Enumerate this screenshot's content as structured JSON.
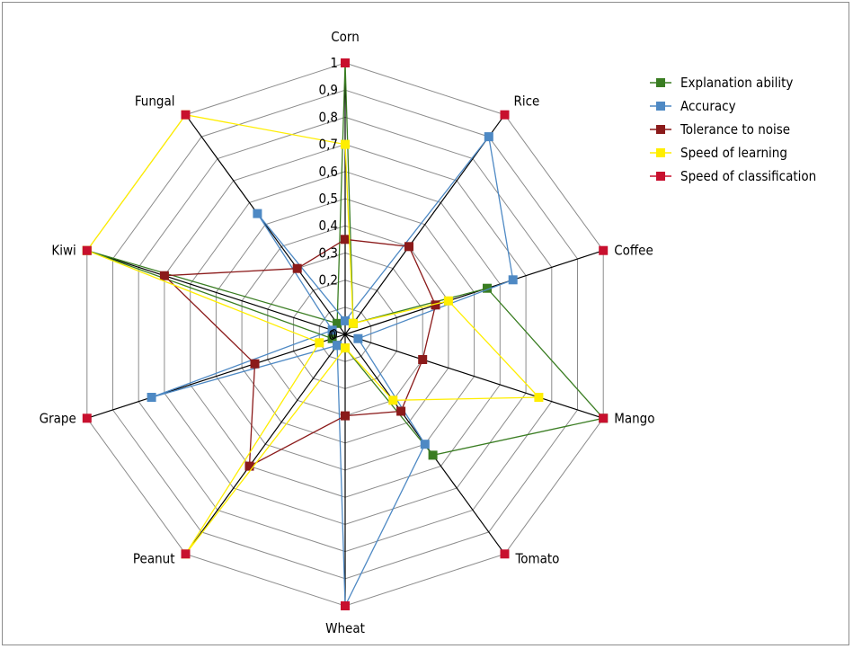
{
  "chart_data": {
    "type": "radar",
    "categories": [
      "Corn",
      "Rice",
      "Coffee",
      "Mango",
      "Tomato",
      "Wheat",
      "Peanut",
      "Grape",
      "Kiwi",
      "Fungal"
    ],
    "rlim": [
      0,
      1
    ],
    "grid": true,
    "legend_position": "top-right",
    "tick_labels": [
      "0",
      "0,2",
      "0,3",
      "0,4",
      "0,5",
      "0,6",
      "0,7",
      "0,8",
      "0,9",
      "1"
    ],
    "tick_values": [
      0,
      0.2,
      0.3,
      0.4,
      0.5,
      0.6,
      0.7,
      0.8,
      0.9,
      1.0
    ],
    "origin_label": "0",
    "series": [
      {
        "name": "Explanation ability",
        "color": "#3a7d22",
        "values": [
          1.0,
          0.05,
          0.55,
          1.0,
          0.55,
          0.05,
          0.05,
          0.05,
          1.0,
          0.05
        ]
      },
      {
        "name": "Accuracy",
        "color": "#4e89c4",
        "values": [
          0.05,
          0.9,
          0.65,
          0.05,
          0.5,
          1.0,
          0.05,
          0.75,
          0.05,
          0.55
        ]
      },
      {
        "name": "Tolerance to noise",
        "color": "#8b1a1a",
        "values": [
          0.35,
          0.4,
          0.35,
          0.3,
          0.35,
          0.3,
          0.6,
          0.35,
          0.7,
          0.3
        ]
      },
      {
        "name": "Speed of learning",
        "color": "#ffee00",
        "values": [
          0.7,
          0.05,
          0.4,
          0.75,
          0.3,
          0.05,
          1.0,
          0.1,
          1.0,
          1.0
        ]
      },
      {
        "name": "Speed of classification",
        "color": "#c8102e",
        "values": [
          1.0,
          1.0,
          1.0,
          1.0,
          1.0,
          1.0,
          1.0,
          1.0,
          1.0,
          1.0
        ]
      }
    ]
  }
}
